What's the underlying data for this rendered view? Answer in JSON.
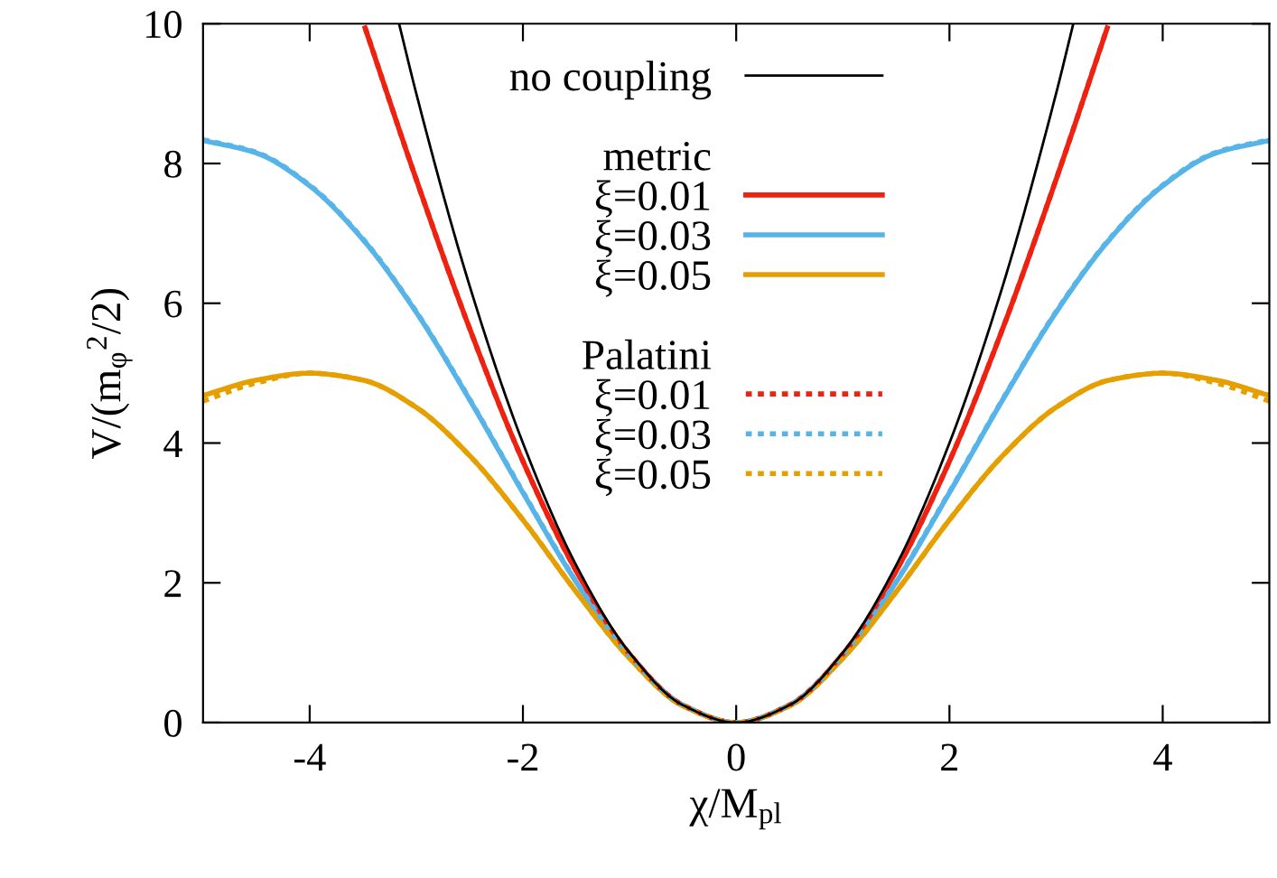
{
  "chart_data": {
    "type": "line",
    "xlabel": "χ/M$_{pl}$",
    "ylabel": "V/(m$_{φ}$$^{2}$/2)",
    "xlim": [
      -5,
      5
    ],
    "ylim": [
      0,
      10
    ],
    "xticks": [
      -4,
      -2,
      0,
      2,
      4
    ],
    "yticks": [
      0,
      2,
      4,
      6,
      8,
      10
    ],
    "grid": false,
    "legend": "top right",
    "annotations": [
      "metric",
      "Palatini"
    ],
    "series": [
      {
        "name": "no coupling",
        "color": "#000000",
        "line_style": "solid",
        "x": [
          -3.16,
          -3,
          -2.5,
          -2,
          -1.5,
          -1,
          -0.5,
          0,
          0.5,
          1,
          1.5,
          2,
          2.5,
          3,
          3.16
        ],
        "values": [
          9.99,
          9.0,
          6.25,
          4.0,
          2.25,
          1.0,
          0.25,
          0,
          0.25,
          1.0,
          2.25,
          4.0,
          6.25,
          9.0,
          9.99
        ]
      },
      {
        "name": "ξ=0.01",
        "color": "#ee2211",
        "line_style": "solid",
        "x": [
          -3.48,
          -3,
          -2.5,
          -2,
          -1.5,
          -1,
          -0.5,
          0,
          0.5,
          1,
          1.5,
          2,
          2.5,
          3,
          3.48
        ],
        "values": [
          9.94,
          7.77,
          5.64,
          3.74,
          2.17,
          0.98,
          0.25,
          0,
          0.25,
          0.98,
          2.17,
          3.74,
          5.64,
          7.77,
          9.94
        ]
      },
      {
        "name": "ξ=0.03",
        "color": "#56b4e9",
        "line_style": "solid",
        "x": [
          -5,
          -4.5,
          -4,
          -3.5,
          -3,
          -2.5,
          -2,
          -1.5,
          -1,
          -0.5,
          0,
          0.5,
          1,
          1.5,
          2,
          2.5,
          3,
          3.5,
          4,
          4.5,
          5
        ],
        "values": [
          8.33,
          8.15,
          7.68,
          6.91,
          5.87,
          4.62,
          3.29,
          2.01,
          0.95,
          0.25,
          0,
          0.25,
          0.95,
          2.01,
          3.29,
          4.62,
          5.87,
          6.91,
          7.68,
          8.15,
          8.33
        ]
      },
      {
        "name": "ξ=0.05",
        "color": "#e69f00",
        "line_style": "solid",
        "x": [
          -5,
          -4.5,
          -4,
          -3.5,
          -3,
          -2.5,
          -2,
          -1.5,
          -1,
          -0.5,
          0,
          0.5,
          1,
          1.5,
          2,
          2.5,
          3,
          3.5,
          4,
          4.5,
          5
        ],
        "values": [
          4.68,
          4.9,
          5.0,
          4.9,
          4.51,
          3.82,
          2.9,
          1.87,
          0.92,
          0.24,
          0,
          0.24,
          0.92,
          1.87,
          2.9,
          3.82,
          4.51,
          4.9,
          5.0,
          4.9,
          4.68
        ]
      },
      {
        "name": "ξ=0.01",
        "color": "#ee2211",
        "line_style": "dotted",
        "x": [
          -3.48,
          -3,
          -2.5,
          -2,
          -1.5,
          -1,
          -0.5,
          0,
          0.5,
          1,
          1.5,
          2,
          2.5,
          3,
          3.48
        ],
        "values": [
          9.94,
          7.77,
          5.64,
          3.74,
          2.17,
          0.98,
          0.25,
          0,
          0.25,
          0.98,
          2.17,
          3.74,
          5.64,
          7.77,
          9.94
        ]
      },
      {
        "name": "ξ=0.03",
        "color": "#56b4e9",
        "line_style": "dotted",
        "x": [
          -5,
          -4.5,
          -4,
          -3.5,
          -3,
          -2.5,
          -2,
          -1.5,
          -1,
          -0.5,
          0,
          0.5,
          1,
          1.5,
          2,
          2.5,
          3,
          3.5,
          4,
          4.5,
          5
        ],
        "values": [
          8.34,
          8.16,
          7.69,
          6.92,
          5.88,
          4.63,
          3.3,
          2.02,
          0.95,
          0.25,
          0,
          0.25,
          0.95,
          2.02,
          3.3,
          4.63,
          5.88,
          6.92,
          7.69,
          8.16,
          8.34
        ]
      },
      {
        "name": "ξ=0.05",
        "color": "#e69f00",
        "line_style": "dotted",
        "x": [
          -5,
          -4.5,
          -4,
          -3.5,
          -3,
          -2.5,
          -2,
          -1.5,
          -1,
          -0.5,
          0,
          0.5,
          1,
          1.5,
          2,
          2.5,
          3,
          3.5,
          4,
          4.5,
          5
        ],
        "values": [
          4.6,
          4.86,
          5.0,
          4.9,
          4.51,
          3.82,
          2.9,
          1.87,
          0.92,
          0.24,
          0,
          0.24,
          0.92,
          1.87,
          2.9,
          3.82,
          4.51,
          4.9,
          5.0,
          4.86,
          4.6
        ]
      }
    ]
  }
}
